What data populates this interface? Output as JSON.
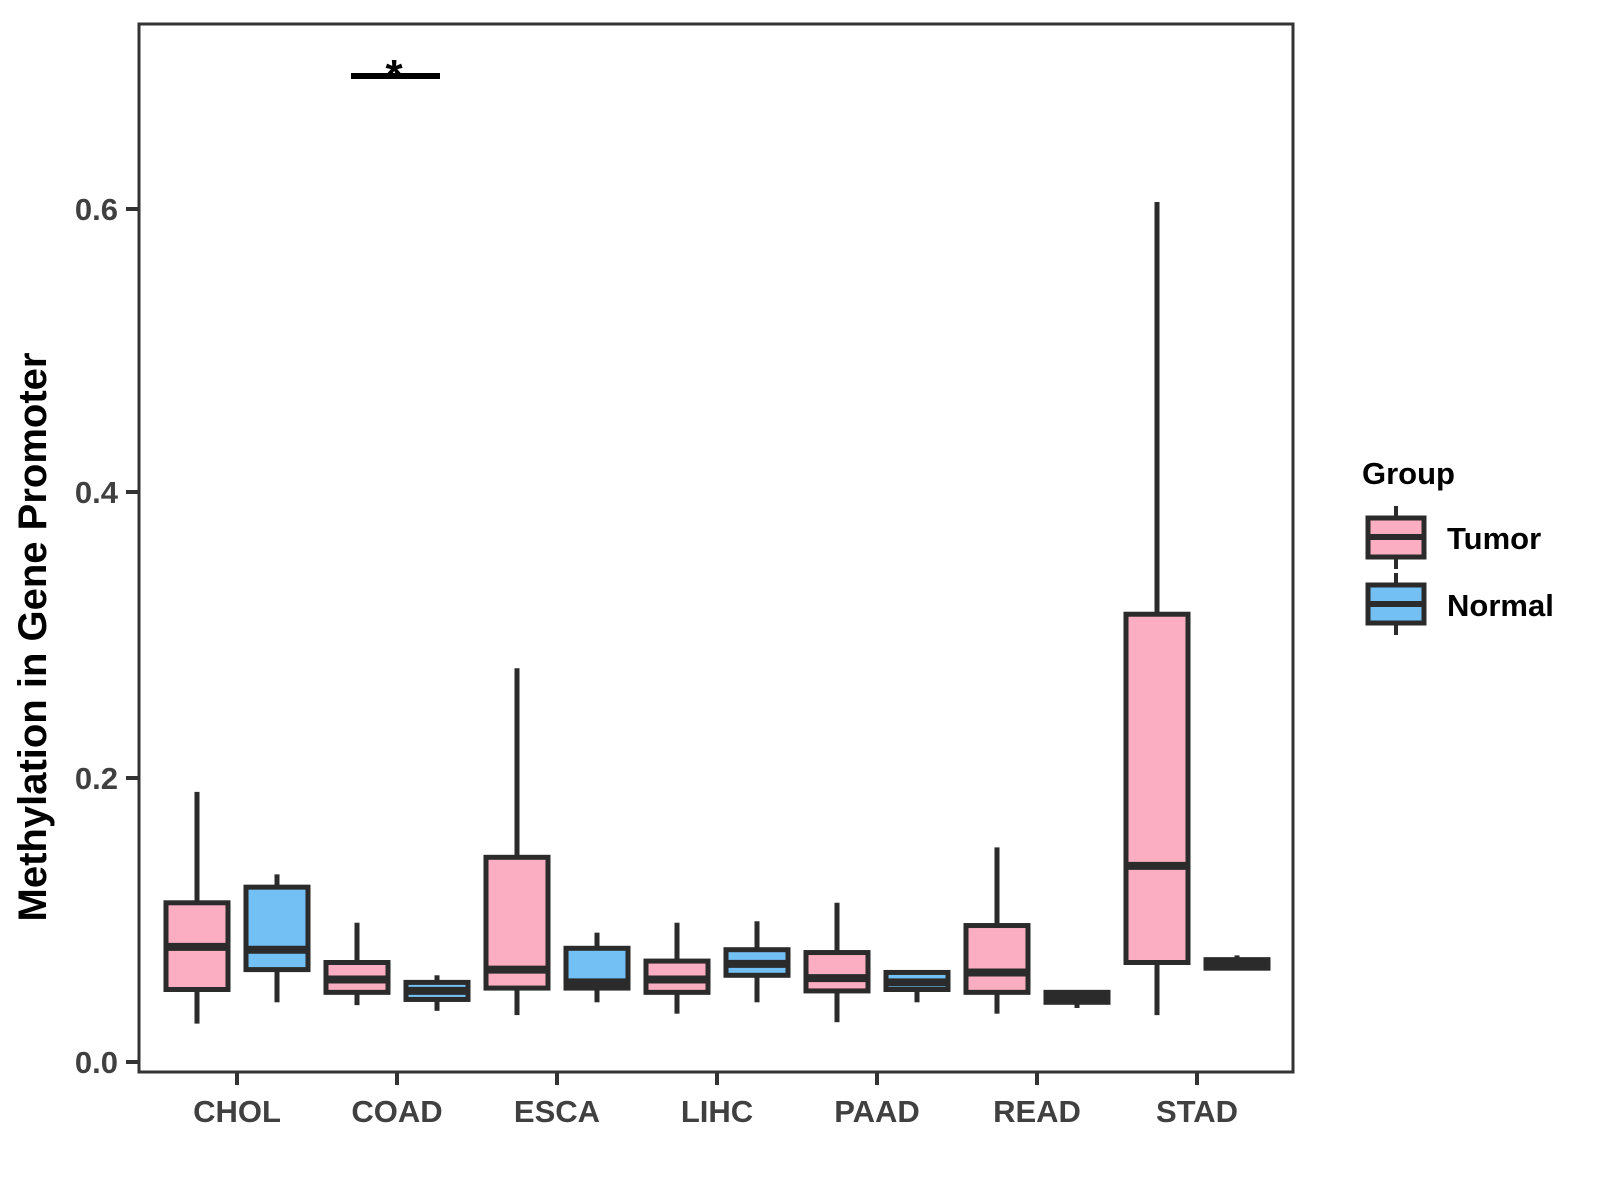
{
  "chart_data": {
    "type": "boxplot",
    "title": "",
    "xlabel": "",
    "ylabel": "Methylation in Gene Promoter",
    "categories": [
      "CHOL",
      "COAD",
      "ESCA",
      "LIHC",
      "PAAD",
      "READ",
      "STAD"
    ],
    "yticks": [
      "0.0",
      "0.2",
      "0.4",
      "0.6"
    ],
    "ytick_values": [
      0.0,
      0.2,
      0.4,
      0.6
    ],
    "ylim": [
      0.0,
      0.73
    ],
    "grid": false,
    "legend_position": "right",
    "legend_title": "Group",
    "series": [
      {
        "name": "Tumor",
        "fill": "#FBAEC1",
        "boxes": [
          {
            "category": "CHOL",
            "min": 0.027,
            "q1": 0.051,
            "median": 0.081,
            "q3": 0.112,
            "max": 0.19
          },
          {
            "category": "COAD",
            "min": 0.04,
            "q1": 0.049,
            "median": 0.058,
            "q3": 0.07,
            "max": 0.098
          },
          {
            "category": "ESCA",
            "min": 0.033,
            "q1": 0.052,
            "median": 0.065,
            "q3": 0.144,
            "max": 0.277
          },
          {
            "category": "LIHC",
            "min": 0.034,
            "q1": 0.049,
            "median": 0.058,
            "q3": 0.071,
            "max": 0.098
          },
          {
            "category": "PAAD",
            "min": 0.028,
            "q1": 0.05,
            "median": 0.059,
            "q3": 0.077,
            "max": 0.112
          },
          {
            "category": "READ",
            "min": 0.034,
            "q1": 0.049,
            "median": 0.063,
            "q3": 0.096,
            "max": 0.151
          },
          {
            "category": "STAD",
            "min": 0.033,
            "q1": 0.07,
            "median": 0.138,
            "q3": 0.315,
            "max": 0.605
          }
        ]
      },
      {
        "name": "Normal",
        "fill": "#73C0F5",
        "boxes": [
          {
            "category": "CHOL",
            "min": 0.042,
            "q1": 0.065,
            "median": 0.079,
            "q3": 0.123,
            "max": 0.132
          },
          {
            "category": "COAD",
            "min": 0.036,
            "q1": 0.044,
            "median": 0.05,
            "q3": 0.056,
            "max": 0.061
          },
          {
            "category": "ESCA",
            "min": 0.042,
            "q1": 0.052,
            "median": 0.056,
            "q3": 0.08,
            "max": 0.091
          },
          {
            "category": "LIHC",
            "min": 0.042,
            "q1": 0.061,
            "median": 0.069,
            "q3": 0.079,
            "max": 0.099
          },
          {
            "category": "PAAD",
            "min": 0.042,
            "q1": 0.051,
            "median": 0.056,
            "q3": 0.063,
            "max": 0.063
          },
          {
            "category": "READ",
            "min": 0.038,
            "q1": 0.042,
            "median": 0.046,
            "q3": 0.049,
            "max": 0.049
          },
          {
            "category": "STAD",
            "min": 0.065,
            "q1": 0.066,
            "median": 0.069,
            "q3": 0.072,
            "max": 0.075
          }
        ]
      }
    ],
    "annotations": [
      {
        "type": "significance-bracket",
        "text": "*",
        "category": "COAD",
        "between": [
          "Tumor",
          "Normal"
        ],
        "y": 0.695
      }
    ],
    "style": {
      "box_stroke": "#2B2B2B",
      "panel_stroke": "#333333",
      "tick_text_color": "#404040",
      "background": "#FFFFFF"
    }
  }
}
